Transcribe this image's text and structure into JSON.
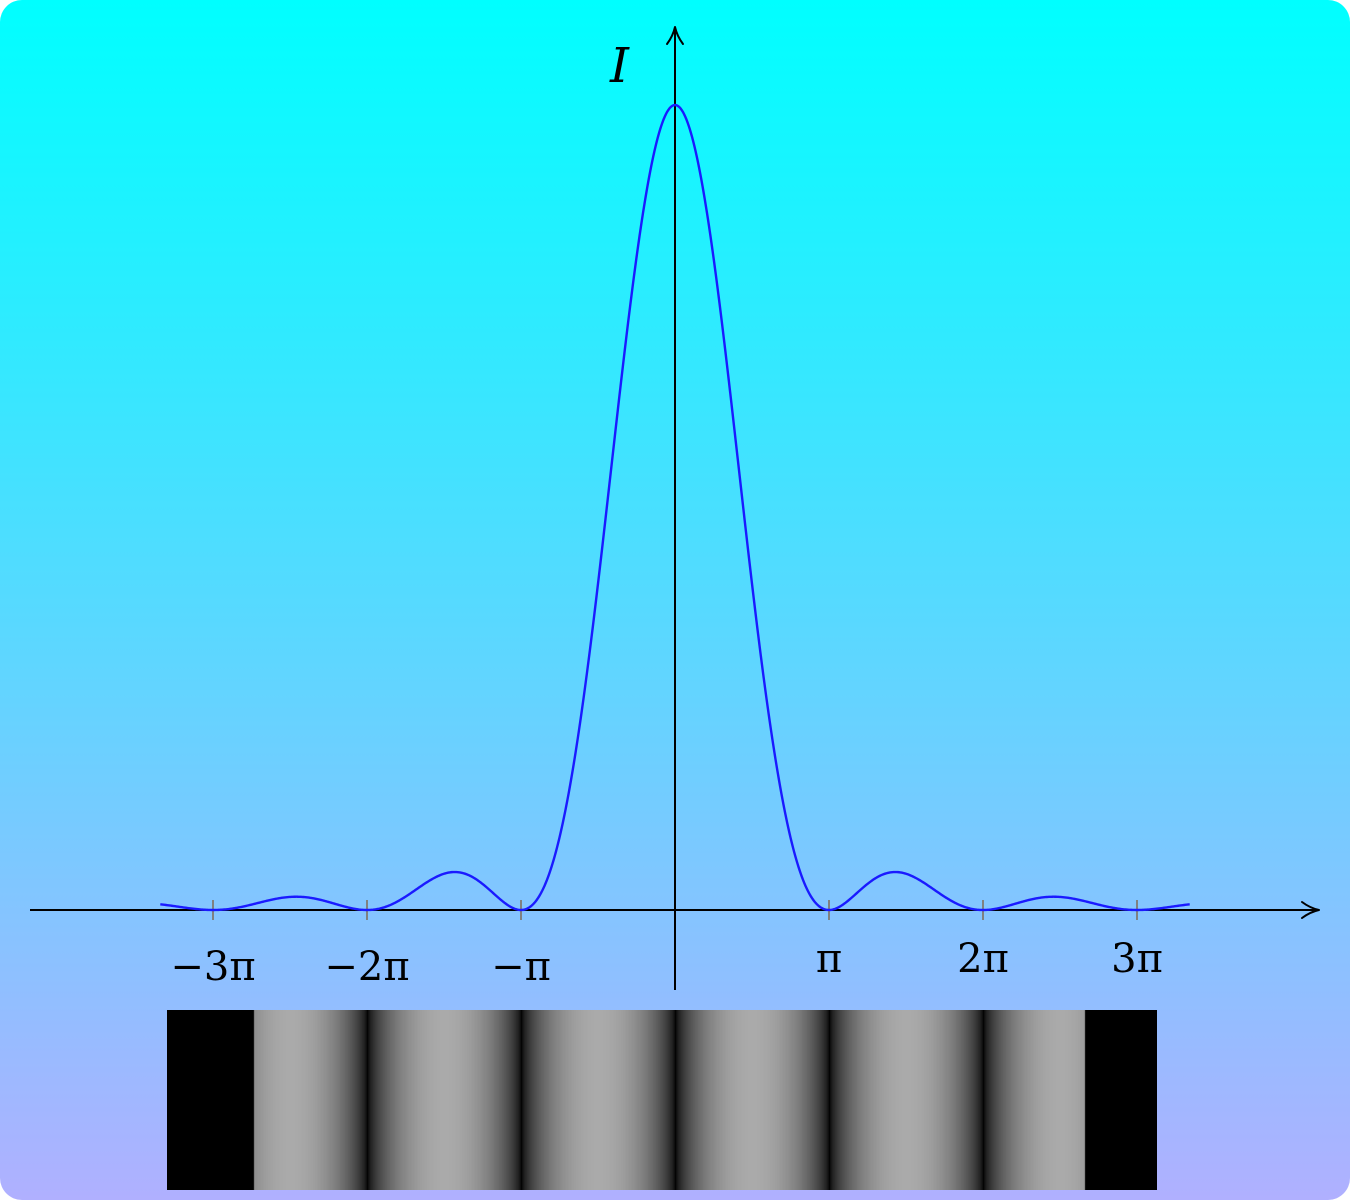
{
  "chart_data": {
    "type": "line",
    "function": "sinc squared (single-slit diffraction intensity)",
    "ylabel": "I",
    "xlabel": "",
    "x_ticks": [
      "−3π",
      "−2π",
      "−π",
      "π",
      "2π",
      "3π"
    ],
    "x_tick_values": [
      -9.42478,
      -6.28319,
      -3.14159,
      3.14159,
      6.28319,
      9.42478
    ],
    "xlim": [
      -11.0,
      11.0
    ],
    "ylim": [
      0,
      1.0
    ],
    "curve_x_range": [
      -10.5,
      10.5
    ],
    "series": [
      {
        "x": [
          -10.5,
          -9.42478,
          -7.73,
          -6.28319,
          -4.49,
          -3.14159,
          -1.5,
          0,
          1.5,
          3.14159,
          4.49,
          6.28319,
          7.73,
          9.42478,
          10.5
        ],
        "y": [
          0.0072,
          0,
          0.0165,
          0,
          0.047,
          0,
          0.4,
          1.0,
          0.4,
          0,
          0.047,
          0,
          0.0165,
          0,
          0.0072
        ]
      }
    ],
    "grid": false,
    "legend": "none"
  },
  "colors": {
    "curve": "#1a1aff",
    "axis": "#000000",
    "tick": "#808080",
    "fringe_bright": "#aaaaaa",
    "fringe_dark": "#000000"
  },
  "fringe_pattern": {
    "description_visible": false,
    "x_extent": [
      -10.5,
      10.5
    ]
  }
}
